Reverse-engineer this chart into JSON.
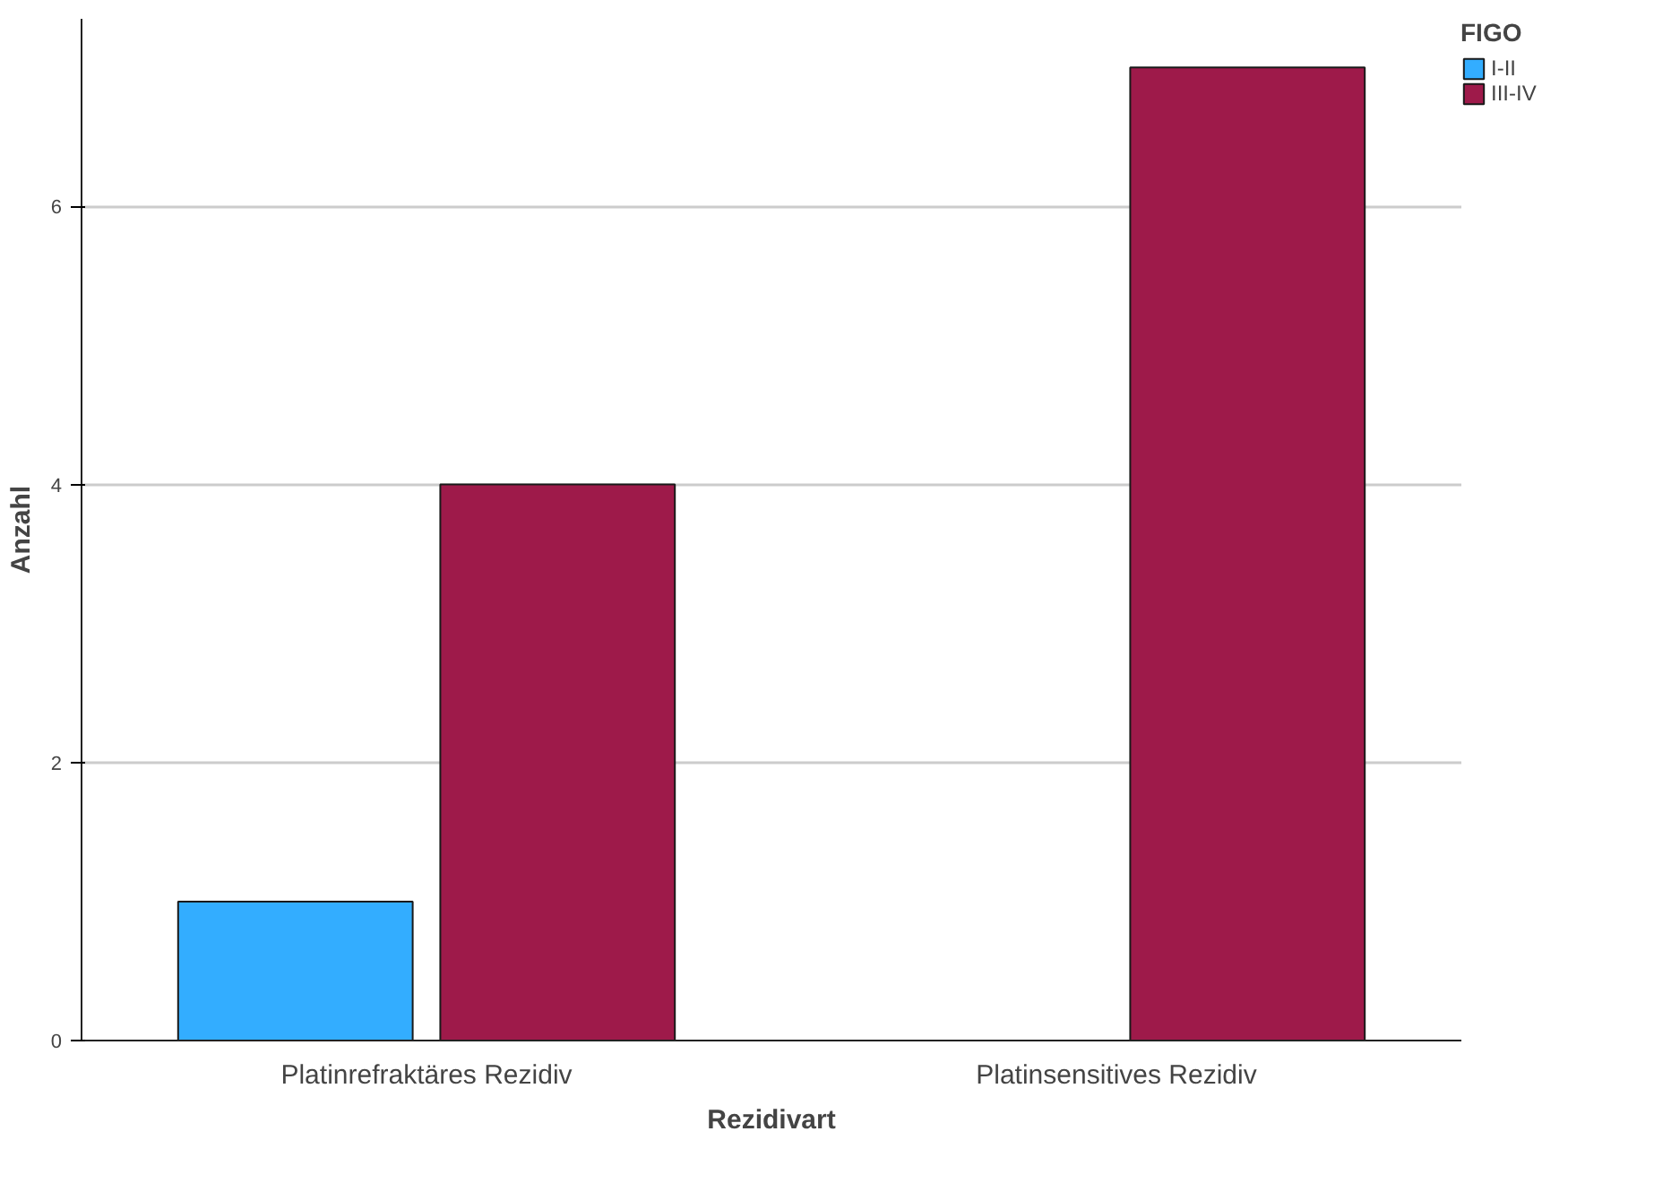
{
  "chart_data": {
    "type": "bar",
    "xlabel": "Rezidivart",
    "ylabel": "Anzahl",
    "legend_title": "FIGO",
    "categories": [
      "Platinrefraktäres Rezidiv",
      "Platinsensitives Rezidiv"
    ],
    "series": [
      {
        "name": "I-II",
        "color": "#33adff",
        "values": [
          1,
          0
        ]
      },
      {
        "name": "III-IV",
        "color": "#9e1a4a",
        "values": [
          4,
          7
        ]
      }
    ],
    "ylim": [
      0,
      7.35
    ],
    "yticks": [
      0,
      2,
      4,
      6
    ],
    "grid": "y",
    "legend": "top right"
  }
}
